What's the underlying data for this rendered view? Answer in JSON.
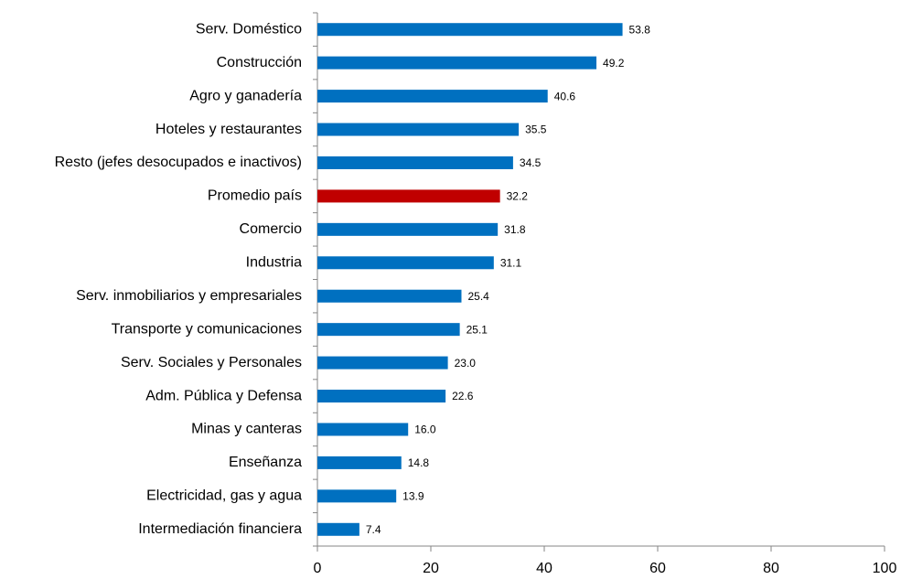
{
  "chart_data": {
    "type": "barh",
    "categories": [
      "Serv. Doméstico",
      "Construcción",
      "Agro y ganadería",
      "Hoteles y restaurantes",
      "Resto (jefes desocupados e inactivos)",
      "Promedio país",
      "Comercio",
      "Industria",
      "Serv. inmobiliarios y empresariales",
      "Transporte y comunicaciones",
      "Serv. Sociales y Personales",
      "Adm. Pública y Defensa",
      "Minas y canteras",
      "Enseñanza",
      "Electricidad, gas y agua",
      "Intermediación financiera"
    ],
    "values": [
      53.8,
      49.2,
      40.6,
      35.5,
      34.5,
      32.2,
      31.8,
      31.1,
      25.4,
      25.1,
      23.0,
      22.6,
      16.0,
      14.8,
      13.9,
      7.4
    ],
    "value_labels": [
      "53.8",
      "49.2",
      "40.6",
      "35.5",
      "34.5",
      "32.2",
      "31.8",
      "31.1",
      "25.4",
      "25.1",
      "23.0",
      "22.6",
      "16.0",
      "14.8",
      "13.9",
      "7.4"
    ],
    "colors": [
      "#0070c0",
      "#0070c0",
      "#0070c0",
      "#0070c0",
      "#0070c0",
      "#c00000",
      "#0070c0",
      "#0070c0",
      "#0070c0",
      "#0070c0",
      "#0070c0",
      "#0070c0",
      "#0070c0",
      "#0070c0",
      "#0070c0",
      "#0070c0"
    ],
    "xlim": [
      0,
      100
    ],
    "xticks": [
      0,
      20,
      40,
      60,
      80,
      100
    ],
    "grid": false
  }
}
